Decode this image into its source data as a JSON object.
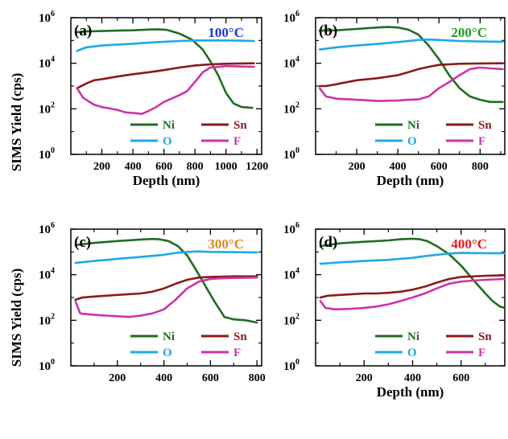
{
  "figure": {
    "ylabel": "SIMS Yield (cps)",
    "colors": {
      "Ni": "#1f6e1f",
      "O": "#1ea8ea",
      "Sn": "#8b1a1a",
      "F": "#cc33aa"
    }
  },
  "chart_data": [
    {
      "type": "line",
      "panel_label": "(a)",
      "temperature": "100°C",
      "temp_color": "#1a35d6",
      "xlabel": "Depth (nm)",
      "ylabel": "SIMS Yield (cps)",
      "xlim": [
        0,
        1230
      ],
      "ylim_log10": [
        0,
        6
      ],
      "xticks": [
        200,
        400,
        600,
        800,
        1000,
        1200
      ],
      "xtick_labels": [
        "200",
        "400",
        "600",
        "800",
        "1000",
        "1200"
      ],
      "yticks": [
        0,
        2,
        4,
        6
      ],
      "ytick_labels": [
        "10",
        "10",
        "10",
        "10"
      ],
      "ytick_exponents": [
        "0",
        "2",
        "4",
        "6"
      ],
      "legend": [
        [
          "Ni",
          "Sn"
        ],
        [
          "O",
          "F"
        ]
      ],
      "series": [
        {
          "name": "Ni",
          "x": [
            40,
            100,
            200,
            300,
            400,
            500,
            560,
            620,
            700,
            780,
            850,
            900,
            950,
            1000,
            1050,
            1100,
            1170
          ],
          "y": [
            230000,
            250000,
            260000,
            270000,
            280000,
            300000,
            310000,
            290000,
            200000,
            110000,
            40000,
            12000,
            3000,
            500,
            170,
            120,
            110
          ]
        },
        {
          "name": "O",
          "x": [
            40,
            100,
            200,
            300,
            400,
            500,
            600,
            700,
            800,
            900,
            1000,
            1100,
            1180
          ],
          "y": [
            35000,
            50000,
            60000,
            66000,
            72000,
            80000,
            88000,
            95000,
            100000,
            100000,
            100000,
            98000,
            95000
          ]
        },
        {
          "name": "Sn",
          "x": [
            40,
            100,
            150,
            200,
            300,
            400,
            500,
            600,
            700,
            800,
            900,
            1000,
            1100,
            1180
          ],
          "y": [
            800,
            1300,
            1800,
            2000,
            2600,
            3300,
            4000,
            5000,
            6500,
            8000,
            9000,
            9500,
            9800,
            10000
          ]
        },
        {
          "name": "F",
          "x": [
            40,
            80,
            150,
            200,
            300,
            350,
            400,
            460,
            500,
            550,
            600,
            700,
            750,
            800,
            850,
            900,
            1000,
            1100,
            1180
          ],
          "y": [
            800,
            300,
            150,
            120,
            90,
            70,
            65,
            60,
            80,
            120,
            200,
            400,
            600,
            1500,
            4000,
            6500,
            7500,
            7200,
            7000
          ]
        }
      ]
    },
    {
      "type": "line",
      "panel_label": "(b)",
      "temperature": "200°C",
      "temp_color": "#1e9a1e",
      "xlabel": "Depth (nm)",
      "ylabel": "SIMS Yield (cps)",
      "xlim": [
        0,
        920
      ],
      "ylim_log10": [
        0,
        6
      ],
      "xticks": [
        200,
        400,
        600,
        800
      ],
      "xtick_labels": [
        "200",
        "400",
        "600",
        "800"
      ],
      "yticks": [
        0,
        2,
        4,
        6
      ],
      "ytick_labels": [
        "10",
        "10",
        "10",
        "10"
      ],
      "ytick_exponents": [
        "0",
        "2",
        "4",
        "6"
      ],
      "legend": [
        [
          "Ni",
          "Sn"
        ],
        [
          "O",
          "F"
        ]
      ],
      "series": [
        {
          "name": "Ni",
          "x": [
            20,
            100,
            200,
            300,
            350,
            400,
            450,
            500,
            550,
            600,
            650,
            700,
            750,
            800,
            850,
            910
          ],
          "y": [
            270000,
            280000,
            320000,
            370000,
            390000,
            370000,
            300000,
            180000,
            60000,
            15000,
            3000,
            800,
            350,
            250,
            200,
            200
          ]
        },
        {
          "name": "O",
          "x": [
            20,
            100,
            200,
            300,
            400,
            450,
            500,
            550,
            600,
            700,
            800,
            910
          ],
          "y": [
            40000,
            50000,
            60000,
            70000,
            85000,
            95000,
            105000,
            110000,
            105000,
            95000,
            90000,
            88000
          ]
        },
        {
          "name": "Sn",
          "x": [
            20,
            50,
            100,
            200,
            300,
            400,
            450,
            500,
            550,
            600,
            700,
            800,
            910
          ],
          "y": [
            1000,
            1000,
            1200,
            1800,
            2200,
            3000,
            4000,
            5500,
            7000,
            8500,
            9500,
            9800,
            10000
          ]
        },
        {
          "name": "F",
          "x": [
            20,
            50,
            100,
            200,
            300,
            400,
            450,
            500,
            550,
            600,
            650,
            700,
            750,
            800,
            850,
            910
          ],
          "y": [
            800,
            350,
            280,
            250,
            220,
            230,
            250,
            260,
            350,
            800,
            1500,
            3000,
            5500,
            6500,
            6000,
            5500
          ]
        }
      ]
    },
    {
      "type": "line",
      "panel_label": "(c)",
      "temperature": "300°C",
      "temp_color": "#d48a1a",
      "xlabel": "",
      "ylabel": "SIMS Yield (cps)",
      "xlim": [
        0,
        820
      ],
      "ylim_log10": [
        0,
        6
      ],
      "xticks": [
        200,
        400,
        600,
        800
      ],
      "xtick_labels": [
        "200",
        "400",
        "600",
        "800"
      ],
      "yticks": [
        0,
        2,
        4,
        6
      ],
      "ytick_labels": [
        "10",
        "10",
        "10",
        "10"
      ],
      "ytick_exponents": [
        "0",
        "2",
        "4",
        "6"
      ],
      "legend": [
        [
          "Ni",
          "Sn"
        ],
        [
          "O",
          "F"
        ]
      ],
      "series": [
        {
          "name": "Ni",
          "x": [
            20,
            100,
            200,
            300,
            350,
            380,
            420,
            460,
            500,
            540,
            580,
            620,
            660,
            700,
            750,
            800
          ],
          "y": [
            200000,
            250000,
            300000,
            350000,
            370000,
            360000,
            300000,
            180000,
            70000,
            15000,
            3000,
            600,
            140,
            110,
            100,
            80
          ]
        },
        {
          "name": "O",
          "x": [
            20,
            100,
            200,
            300,
            400,
            450,
            500,
            550,
            600,
            700,
            800
          ],
          "y": [
            33000,
            40000,
            50000,
            60000,
            75000,
            90000,
            100000,
            105000,
            100000,
            98000,
            95000
          ]
        },
        {
          "name": "Sn",
          "x": [
            20,
            50,
            100,
            150,
            200,
            300,
            350,
            400,
            450,
            500,
            550,
            600,
            700,
            800
          ],
          "y": [
            800,
            1000,
            1100,
            1200,
            1300,
            1500,
            1800,
            2500,
            4000,
            6000,
            7500,
            8000,
            8500,
            8500
          ]
        },
        {
          "name": "F",
          "x": [
            20,
            40,
            80,
            150,
            200,
            250,
            300,
            350,
            400,
            450,
            500,
            550,
            600,
            650,
            700,
            800
          ],
          "y": [
            650,
            200,
            180,
            160,
            150,
            140,
            160,
            200,
            300,
            800,
            2500,
            5000,
            6500,
            7000,
            7200,
            7500
          ]
        }
      ]
    },
    {
      "type": "line",
      "panel_label": "(d)",
      "temperature": "400°C",
      "temp_color": "#e51e1e",
      "xlabel": "Depth (nm)",
      "ylabel": "SIMS Yield (cps)",
      "xlim": [
        0,
        780
      ],
      "ylim_log10": [
        0,
        6
      ],
      "xticks": [
        200,
        400,
        600
      ],
      "xtick_labels": [
        "200",
        "400",
        "600"
      ],
      "yticks": [
        0,
        2,
        4,
        6
      ],
      "ytick_labels": [
        "10",
        "10",
        "10",
        "10"
      ],
      "ytick_exponents": [
        "0",
        "2",
        "4",
        "6"
      ],
      "legend": [
        [
          "Ni",
          "Sn"
        ],
        [
          "O",
          "F"
        ]
      ],
      "series": [
        {
          "name": "Ni",
          "x": [
            20,
            100,
            200,
            300,
            350,
            400,
            430,
            460,
            500,
            550,
            600,
            650,
            700,
            730,
            760,
            780
          ],
          "y": [
            180000,
            240000,
            280000,
            320000,
            360000,
            380000,
            360000,
            300000,
            180000,
            80000,
            25000,
            6000,
            1500,
            700,
            400,
            350
          ]
        },
        {
          "name": "O",
          "x": [
            20,
            100,
            200,
            300,
            400,
            450,
            500,
            550,
            600,
            700,
            780
          ],
          "y": [
            30000,
            35000,
            40000,
            45000,
            55000,
            65000,
            75000,
            85000,
            90000,
            88000,
            88000
          ]
        },
        {
          "name": "Sn",
          "x": [
            20,
            50,
            100,
            150,
            200,
            250,
            300,
            350,
            400,
            450,
            500,
            550,
            600,
            700,
            780
          ],
          "y": [
            1000,
            1200,
            1300,
            1400,
            1500,
            1500,
            1600,
            1800,
            2200,
            3000,
            4500,
            6500,
            8000,
            9000,
            9500
          ]
        },
        {
          "name": "F",
          "x": [
            20,
            40,
            80,
            150,
            200,
            250,
            300,
            350,
            400,
            450,
            500,
            550,
            600,
            650,
            700,
            780
          ],
          "y": [
            700,
            350,
            300,
            320,
            350,
            400,
            500,
            700,
            1000,
            1500,
            2500,
            4000,
            5000,
            5500,
            6000,
            6500
          ]
        }
      ]
    }
  ]
}
